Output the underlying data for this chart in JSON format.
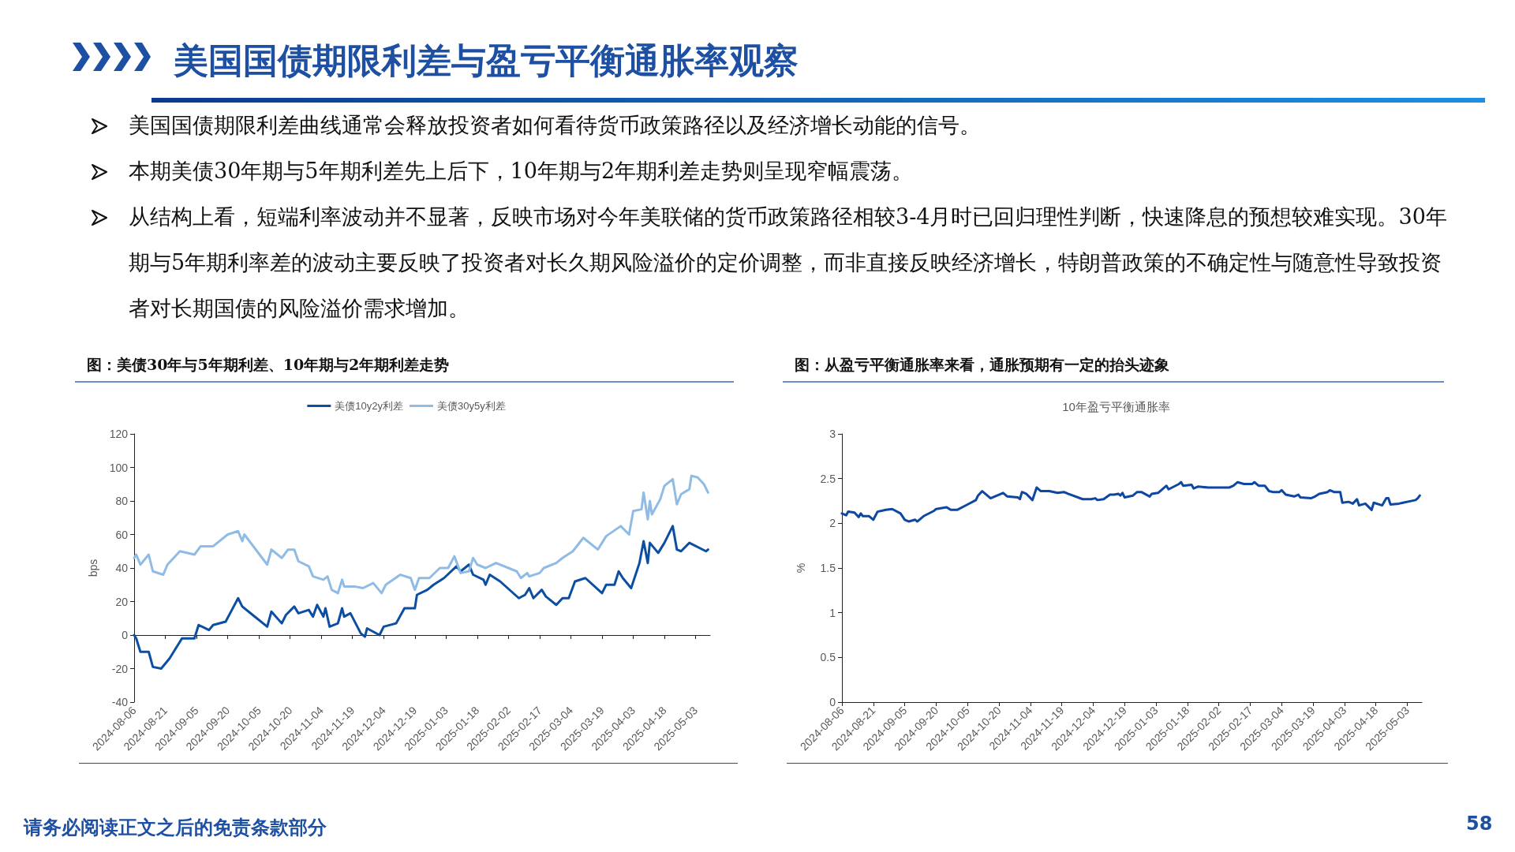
{
  "chart_data": [
    {
      "type": "other",
      "title": "美国国债期限利差与盈亏平衡通胀率观察",
      "annotations": [
        "美国国债期限利差曲线通常会释放投资者如何看待货币政策路径以及经济增长动能的信号。",
        "本期美债30年期与5年期利差先上后下，10年期与2年期利差走势则呈现窄幅震荡。",
        "从结构上看，短端利率波动并不显著，反映市场对今年美联储的货币政策路径相较3-4月时已回归理性判断，快速降息的预想较难实现。30年期与5年期利率差的波动主要反映了投资者对长久期风险溢价的定价调整，而非直接反映经济增长，特朗普政策的不确定性与随意性导致投资者对长期国债的风险溢价需求增加。",
        "请务必阅读正文之后的免责条款部分",
        "58"
      ]
    },
    {
      "type": "line",
      "title": "图：美债30年与5年期利差、10年期与2年期利差走势",
      "ylabel": "bps",
      "legend": "top",
      "marker": "none",
      "line_style": "solid",
      "xlim": [
        "2024-08-06",
        "2025-05-10"
      ],
      "ylim": [
        -40,
        120
      ],
      "yticks": [
        -40,
        -20,
        0,
        20,
        40,
        60,
        80,
        100,
        120
      ],
      "xticks": [
        "2024-08-06",
        "2024-08-21",
        "2024-09-05",
        "2024-09-20",
        "2024-10-05",
        "2024-10-20",
        "2024-11-04",
        "2024-11-19",
        "2024-12-04",
        "2024-12-19",
        "2025-01-03",
        "2025-01-18",
        "2025-02-02",
        "2025-02-17",
        "2025-03-04",
        "2025-03-19",
        "2025-04-03",
        "2025-04-18",
        "2025-05-03"
      ],
      "series": [
        {
          "name": "美债10y2y利差",
          "color": "#0b4ea2",
          "x": [
            "2024-08-06",
            "2024-08-07",
            "2024-08-09",
            "2024-08-13",
            "2024-08-15",
            "2024-08-19",
            "2024-08-23",
            "2024-08-29",
            "2024-09-04",
            "2024-09-06",
            "2024-09-11",
            "2024-09-13",
            "2024-09-19",
            "2024-09-22",
            "2024-09-25",
            "2024-09-27",
            "2024-10-02",
            "2024-10-09",
            "2024-10-11",
            "2024-10-16",
            "2024-10-18",
            "2024-10-22",
            "2024-10-24",
            "2024-10-29",
            "2024-10-31",
            "2024-11-02",
            "2024-11-05",
            "2024-11-06",
            "2024-11-08",
            "2024-11-12",
            "2024-11-14",
            "2024-11-15",
            "2024-11-18",
            "2024-11-23",
            "2024-11-25",
            "2024-11-26",
            "2024-12-02",
            "2024-12-04",
            "2024-12-10",
            "2024-12-14",
            "2024-12-19",
            "2024-12-20",
            "2024-12-25",
            "2024-12-28",
            "2025-01-02",
            "2025-01-08",
            "2025-01-10",
            "2025-01-14",
            "2025-01-16",
            "2025-01-21",
            "2025-01-22",
            "2025-01-24",
            "2025-01-29",
            "2025-02-07",
            "2025-02-10",
            "2025-02-12",
            "2025-02-14",
            "2025-02-18",
            "2025-02-20",
            "2025-02-25",
            "2025-02-28",
            "2025-03-03",
            "2025-03-06",
            "2025-03-11",
            "2025-03-19",
            "2025-03-21",
            "2025-03-25",
            "2025-03-27",
            "2025-03-29",
            "2025-04-02",
            "2025-04-06",
            "2025-04-08",
            "2025-04-10",
            "2025-04-11",
            "2025-04-15",
            "2025-04-18",
            "2025-04-22",
            "2025-04-24",
            "2025-04-26",
            "2025-04-30",
            "2025-05-08",
            "2025-05-09"
          ],
          "values": [
            0,
            -2,
            -10,
            -10,
            -19,
            -20,
            -14,
            -2,
            -2,
            6,
            3,
            6,
            8,
            15,
            22,
            17,
            12,
            5,
            14,
            7,
            12,
            17,
            13,
            15,
            11,
            18,
            11,
            16,
            5,
            7,
            16,
            11,
            13,
            1,
            -1,
            4,
            0,
            5,
            7,
            16,
            16,
            24,
            27,
            30,
            34,
            41,
            38,
            42,
            36,
            33,
            30,
            36,
            32,
            22,
            24,
            28,
            22,
            27,
            23,
            18,
            22,
            22,
            32,
            34,
            25,
            30,
            30,
            38,
            34,
            28,
            43,
            56,
            43,
            55,
            49,
            55,
            65,
            51,
            50,
            55,
            50,
            51
          ]
        },
        {
          "name": "美债30y5y利差",
          "color": "#8fbbe4",
          "x": [
            "2024-08-06",
            "2024-08-07",
            "2024-08-09",
            "2024-08-13",
            "2024-08-15",
            "2024-08-20",
            "2024-08-22",
            "2024-08-28",
            "2024-09-04",
            "2024-09-07",
            "2024-09-13",
            "2024-09-20",
            "2024-09-25",
            "2024-09-27",
            "2024-09-28",
            "2024-10-09",
            "2024-10-11",
            "2024-10-16",
            "2024-10-19",
            "2024-10-22",
            "2024-10-24",
            "2024-10-29",
            "2024-10-31",
            "2024-11-05",
            "2024-11-07",
            "2024-11-09",
            "2024-11-12",
            "2024-11-14",
            "2024-11-15",
            "2024-11-20",
            "2024-11-24",
            "2024-11-29",
            "2024-12-03",
            "2024-12-05",
            "2024-12-12",
            "2024-12-17",
            "2024-12-19",
            "2024-12-21",
            "2024-12-26",
            "2024-12-31",
            "2025-01-04",
            "2025-01-07",
            "2025-01-10",
            "2025-01-14",
            "2025-01-16",
            "2025-01-18",
            "2025-01-22",
            "2025-01-27",
            "2025-02-06",
            "2025-02-08",
            "2025-02-11",
            "2025-02-12",
            "2025-02-17",
            "2025-02-19",
            "2025-02-25",
            "2025-02-28",
            "2025-03-05",
            "2025-03-10",
            "2025-03-17",
            "2025-03-21",
            "2025-03-28",
            "2025-04-01",
            "2025-04-03",
            "2025-04-07",
            "2025-04-08",
            "2025-04-10",
            "2025-04-11",
            "2025-04-12",
            "2025-04-16",
            "2025-04-18",
            "2025-04-22",
            "2025-04-24",
            "2025-04-26",
            "2025-04-30",
            "2025-05-01",
            "2025-05-04",
            "2025-05-07",
            "2025-05-09"
          ],
          "values": [
            46,
            48,
            42,
            48,
            38,
            36,
            42,
            50,
            48,
            53,
            53,
            60,
            62,
            56,
            60,
            42,
            51,
            46,
            51,
            51,
            44,
            41,
            35,
            33,
            35,
            27,
            25,
            33,
            29,
            29,
            28,
            31,
            25,
            30,
            36,
            34,
            27,
            34,
            34,
            40,
            40,
            47,
            37,
            38,
            46,
            42,
            40,
            43,
            38,
            34,
            37,
            35,
            37,
            40,
            43,
            46,
            50,
            58,
            51,
            59,
            65,
            60,
            74,
            75,
            85,
            69,
            80,
            72,
            81,
            89,
            93,
            78,
            84,
            87,
            95,
            94,
            90,
            85
          ]
        }
      ]
    },
    {
      "type": "line",
      "title": "图：从盈亏平衡通胀率来看，通胀预期有一定的抬头迹象",
      "subtitle": "10年盈亏平衡通胀率",
      "ylabel": "%",
      "marker": "none",
      "line_style": "solid",
      "xlim": [
        "2024-08-06",
        "2025-05-10"
      ],
      "ylim": [
        0,
        3
      ],
      "yticks": [
        0,
        0.5,
        1,
        1.5,
        2,
        2.5,
        3
      ],
      "xticks": [
        "2024-08-06",
        "2024-08-21",
        "2024-09-05",
        "2024-09-20",
        "2024-10-05",
        "2024-10-20",
        "2024-11-04",
        "2024-11-19",
        "2024-12-04",
        "2024-12-19",
        "2025-01-03",
        "2025-01-18",
        "2025-02-02",
        "2025-02-17",
        "2025-03-04",
        "2025-03-19",
        "2025-04-03",
        "2025-04-18",
        "2025-05-03"
      ],
      "series": [
        {
          "color": "#0d47a1",
          "x": [
            "2024-08-06",
            "2024-08-08",
            "2024-08-09",
            "2024-08-12",
            "2024-08-14",
            "2024-08-15",
            "2024-08-16",
            "2024-08-19",
            "2024-08-21",
            "2024-08-23",
            "2024-08-27",
            "2024-08-30",
            "2024-09-03",
            "2024-09-05",
            "2024-09-07",
            "2024-09-10",
            "2024-09-11",
            "2024-09-14",
            "2024-09-19",
            "2024-09-20",
            "2024-09-25",
            "2024-09-27",
            "2024-09-30",
            "2024-10-05",
            "2024-10-09",
            "2024-10-10",
            "2024-10-12",
            "2024-10-16",
            "2024-10-20",
            "2024-10-22",
            "2024-10-24",
            "2024-10-29",
            "2024-10-30",
            "2024-10-31",
            "2024-11-02",
            "2024-11-05",
            "2024-11-07",
            "2024-11-09",
            "2024-11-13",
            "2024-11-17",
            "2024-11-20",
            "2024-11-22",
            "2024-11-29",
            "2024-12-03",
            "2024-12-05",
            "2024-12-06",
            "2024-12-09",
            "2024-12-12",
            "2024-12-14",
            "2024-12-16",
            "2024-12-17",
            "2024-12-18",
            "2024-12-19",
            "2024-12-23",
            "2024-12-25",
            "2024-12-27",
            "2024-12-31",
            "2025-01-01",
            "2025-01-04",
            "2025-01-08",
            "2025-01-09",
            "2025-01-14",
            "2025-01-15",
            "2025-01-16",
            "2025-01-20",
            "2025-01-21",
            "2025-01-23",
            "2025-01-28",
            "2025-02-07",
            "2025-02-09",
            "2025-02-11",
            "2025-02-14",
            "2025-02-18",
            "2025-02-19",
            "2025-02-21",
            "2025-02-24",
            "2025-02-26",
            "2025-02-28",
            "2025-03-03",
            "2025-03-04",
            "2025-03-06",
            "2025-03-10",
            "2025-03-12",
            "2025-03-13",
            "2025-03-18",
            "2025-03-20",
            "2025-03-22",
            "2025-03-26",
            "2025-03-27",
            "2025-03-29",
            "2025-04-01",
            "2025-04-02",
            "2025-04-05",
            "2025-04-07",
            "2025-04-09",
            "2025-04-10",
            "2025-04-13",
            "2025-04-16",
            "2025-04-17",
            "2025-04-21",
            "2025-04-23",
            "2025-04-24",
            "2025-04-25",
            "2025-04-29",
            "2025-05-07",
            "2025-05-08",
            "2025-05-09"
          ],
          "values": [
            2.11,
            2.09,
            2.13,
            2.12,
            2.07,
            2.11,
            2.08,
            2.08,
            2.04,
            2.13,
            2.15,
            2.16,
            2.11,
            2.04,
            2.02,
            2.04,
            2.02,
            2.08,
            2.14,
            2.16,
            2.18,
            2.15,
            2.15,
            2.21,
            2.26,
            2.31,
            2.36,
            2.28,
            2.32,
            2.34,
            2.3,
            2.29,
            2.27,
            2.35,
            2.33,
            2.26,
            2.4,
            2.36,
            2.36,
            2.34,
            2.35,
            2.33,
            2.27,
            2.27,
            2.28,
            2.26,
            2.27,
            2.32,
            2.32,
            2.33,
            2.31,
            2.34,
            2.29,
            2.31,
            2.35,
            2.35,
            2.3,
            2.33,
            2.34,
            2.42,
            2.38,
            2.44,
            2.46,
            2.42,
            2.43,
            2.39,
            2.41,
            2.4,
            2.4,
            2.42,
            2.46,
            2.44,
            2.44,
            2.46,
            2.42,
            2.42,
            2.36,
            2.35,
            2.35,
            2.37,
            2.32,
            2.3,
            2.32,
            2.29,
            2.28,
            2.3,
            2.33,
            2.35,
            2.37,
            2.35,
            2.35,
            2.23,
            2.24,
            2.22,
            2.27,
            2.2,
            2.22,
            2.15,
            2.23,
            2.2,
            2.28,
            2.28,
            2.21,
            2.22,
            2.26,
            2.28,
            2.31
          ]
        }
      ]
    }
  ]
}
